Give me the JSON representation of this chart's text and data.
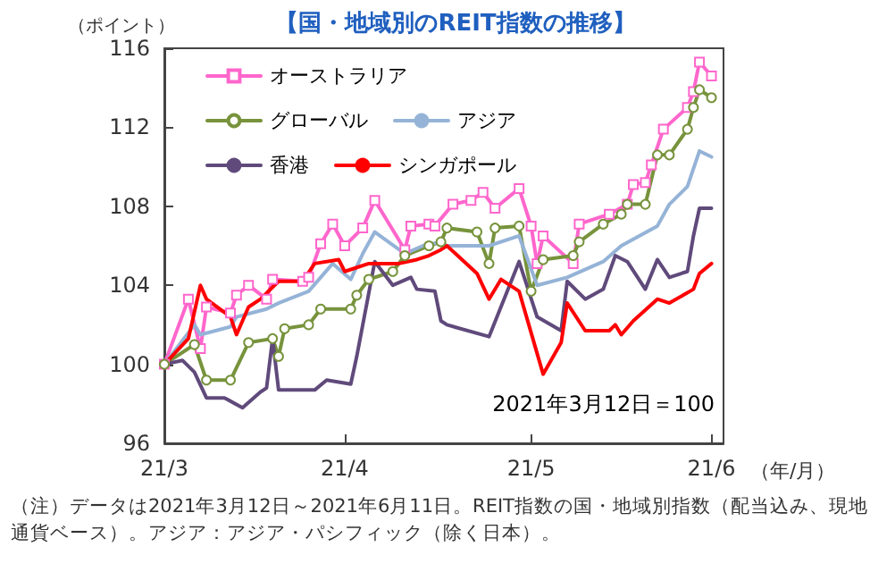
{
  "chart_data": {
    "type": "line",
    "title": "【国・地域別のREIT指数の推移】",
    "ylabel": "（ポイント）",
    "xlabel": "（年/月）",
    "annotations": [
      "2021年3月12日＝100",
      "（注）データは2021年3月12日～2021年6月11日。REIT指数の国・地域別指数（配当込み、現地通貨ベース）。アジア：アジア・パシフィック（除く日本）。"
    ],
    "xlim": [
      "2021-03-12",
      "2021-06-13"
    ],
    "xticks": [
      {
        "value": "2021-03-12",
        "label": "21/3"
      },
      {
        "value": "2021-04-11",
        "label": "21/4"
      },
      {
        "value": "2021-05-12",
        "label": "21/5"
      },
      {
        "value": "2021-06-11",
        "label": "21/6"
      }
    ],
    "ylim": [
      96,
      116
    ],
    "yticks": [
      96,
      100,
      104,
      108,
      112,
      116
    ],
    "grid": false,
    "legend": "top",
    "line_style": "solid",
    "series": [
      {
        "name": "オーストラリア",
        "color": "#ff66cc",
        "marker": "square",
        "x": [
          "2021-03-12",
          "2021-03-16",
          "2021-03-18",
          "2021-03-19",
          "2021-03-23",
          "2021-03-24",
          "2021-03-26",
          "2021-03-29",
          "2021-03-30",
          "2021-04-04",
          "2021-04-05",
          "2021-04-07",
          "2021-04-09",
          "2021-04-11",
          "2021-04-14",
          "2021-04-16",
          "2021-04-21",
          "2021-04-22",
          "2021-04-25",
          "2021-04-26",
          "2021-04-29",
          "2021-05-02",
          "2021-05-04",
          "2021-05-06",
          "2021-05-10",
          "2021-05-12",
          "2021-05-13",
          "2021-05-14",
          "2021-05-19",
          "2021-05-20",
          "2021-05-25",
          "2021-05-28",
          "2021-05-29",
          "2021-05-31",
          "2021-06-01",
          "2021-06-03",
          "2021-06-07",
          "2021-06-08",
          "2021-06-09",
          "2021-06-11"
        ],
        "values": [
          100,
          103.3,
          100.8,
          102.9,
          102.6,
          103.5,
          104,
          103.3,
          104.3,
          104.2,
          104.4,
          106.1,
          107.1,
          106,
          106.9,
          108.3,
          105.8,
          107,
          107.1,
          107,
          108.1,
          108.3,
          108.7,
          107.9,
          108.9,
          107,
          105.1,
          106.5,
          105.1,
          107.1,
          107.6,
          108.1,
          109.1,
          109.2,
          110.1,
          111.9,
          113,
          113.8,
          115.3,
          114.6
        ]
      },
      {
        "name": "グローバル",
        "color": "#77933c",
        "marker": "circle",
        "x": [
          "2021-03-12",
          "2021-03-17",
          "2021-03-19",
          "2021-03-23",
          "2021-03-26",
          "2021-03-30",
          "2021-03-31",
          "2021-04-01",
          "2021-04-05",
          "2021-04-07",
          "2021-04-12",
          "2021-04-13",
          "2021-04-15",
          "2021-04-19",
          "2021-04-21",
          "2021-04-25",
          "2021-04-27",
          "2021-04-28",
          "2021-05-03",
          "2021-05-05",
          "2021-05-06",
          "2021-05-10",
          "2021-05-12",
          "2021-05-14",
          "2021-05-19",
          "2021-05-20",
          "2021-05-24",
          "2021-05-27",
          "2021-05-28",
          "2021-05-31",
          "2021-06-02",
          "2021-06-04",
          "2021-06-07",
          "2021-06-08",
          "2021-06-09",
          "2021-06-11"
        ],
        "values": [
          100,
          101,
          99.2,
          99.2,
          101.1,
          101.3,
          100.4,
          101.8,
          102,
          102.8,
          102.8,
          103.5,
          104.3,
          104.7,
          105.5,
          106,
          106.2,
          106.9,
          106.7,
          105.1,
          106.9,
          107,
          103.7,
          105.3,
          105.5,
          106.2,
          107.1,
          107.6,
          108.1,
          108.1,
          110.6,
          110.6,
          111.9,
          113,
          113.9,
          113.5
        ]
      },
      {
        "name": "アジア",
        "color": "#95b3d7",
        "marker": "none",
        "x": [
          "2021-03-12",
          "2021-03-17",
          "2021-03-18",
          "2021-03-23",
          "2021-03-24",
          "2021-03-29",
          "2021-03-31",
          "2021-04-05",
          "2021-04-09",
          "2021-04-12",
          "2021-04-14",
          "2021-04-16",
          "2021-04-21",
          "2021-04-24",
          "2021-04-27",
          "2021-04-28",
          "2021-05-05",
          "2021-05-10",
          "2021-05-13",
          "2021-05-18",
          "2021-05-24",
          "2021-05-27",
          "2021-06-02",
          "2021-06-04",
          "2021-06-07",
          "2021-06-09",
          "2021-06-11"
        ],
        "values": [
          100,
          102,
          101.5,
          101.9,
          102.4,
          102.8,
          103.1,
          103.7,
          105.1,
          104.3,
          105.6,
          106.7,
          105.6,
          106,
          106.2,
          106,
          106,
          106.5,
          104,
          104.4,
          105.2,
          106,
          107,
          108.1,
          109,
          110.8,
          110.5
        ]
      },
      {
        "name": "香港",
        "color": "#604a7b",
        "marker": "none",
        "x": [
          "2021-03-12",
          "2021-03-15",
          "2021-03-17",
          "2021-03-19",
          "2021-03-22",
          "2021-03-25",
          "2021-03-28",
          "2021-03-29",
          "2021-03-30",
          "2021-03-31",
          "2021-04-06",
          "2021-04-08",
          "2021-04-12",
          "2021-04-13",
          "2021-04-16",
          "2021-04-19",
          "2021-04-22",
          "2021-04-23",
          "2021-04-26",
          "2021-04-27",
          "2021-04-28",
          "2021-05-05",
          "2021-05-10",
          "2021-05-13",
          "2021-05-17",
          "2021-05-18",
          "2021-05-21",
          "2021-05-24",
          "2021-05-26",
          "2021-05-28",
          "2021-05-31",
          "2021-06-02",
          "2021-06-04",
          "2021-06-07",
          "2021-06-08",
          "2021-06-09",
          "2021-06-11"
        ],
        "values": [
          100,
          100.2,
          99.6,
          98.3,
          98.3,
          97.8,
          98.6,
          98.8,
          101.3,
          98.7,
          98.7,
          99.2,
          99,
          100.4,
          105.2,
          104,
          104.4,
          103.8,
          103.7,
          102.2,
          102,
          101.4,
          105.2,
          102.4,
          101.7,
          104.2,
          103.3,
          103.8,
          105.5,
          105.2,
          103.8,
          105.3,
          104.4,
          104.7,
          106.5,
          107.9,
          107.9
        ]
      },
      {
        "name": "シンガポール",
        "color": "#ff0000",
        "marker": "none",
        "x": [
          "2021-03-12",
          "2021-03-16",
          "2021-03-18",
          "2021-03-19",
          "2021-03-23",
          "2021-03-24",
          "2021-03-26",
          "2021-03-28",
          "2021-03-31",
          "2021-04-04",
          "2021-04-06",
          "2021-04-10",
          "2021-04-11",
          "2021-04-15",
          "2021-04-20",
          "2021-04-23",
          "2021-04-25",
          "2021-04-27",
          "2021-04-28",
          "2021-05-03",
          "2021-05-05",
          "2021-05-07",
          "2021-05-10",
          "2021-05-14",
          "2021-05-17",
          "2021-05-18",
          "2021-05-21",
          "2021-05-25",
          "2021-05-26",
          "2021-05-27",
          "2021-05-29",
          "2021-06-02",
          "2021-06-04",
          "2021-06-08",
          "2021-06-09",
          "2021-06-11"
        ],
        "values": [
          100,
          101.3,
          104,
          103.3,
          102.4,
          101.5,
          102.9,
          103.3,
          104.2,
          104.2,
          105.1,
          105.3,
          104.7,
          105.1,
          105.1,
          105.3,
          105.5,
          105.8,
          106,
          104.6,
          103.3,
          104.3,
          103.7,
          99.5,
          101.1,
          103.1,
          101.7,
          101.7,
          102,
          101.5,
          102.2,
          103.3,
          103.1,
          103.8,
          104.6,
          105.1
        ]
      }
    ]
  }
}
